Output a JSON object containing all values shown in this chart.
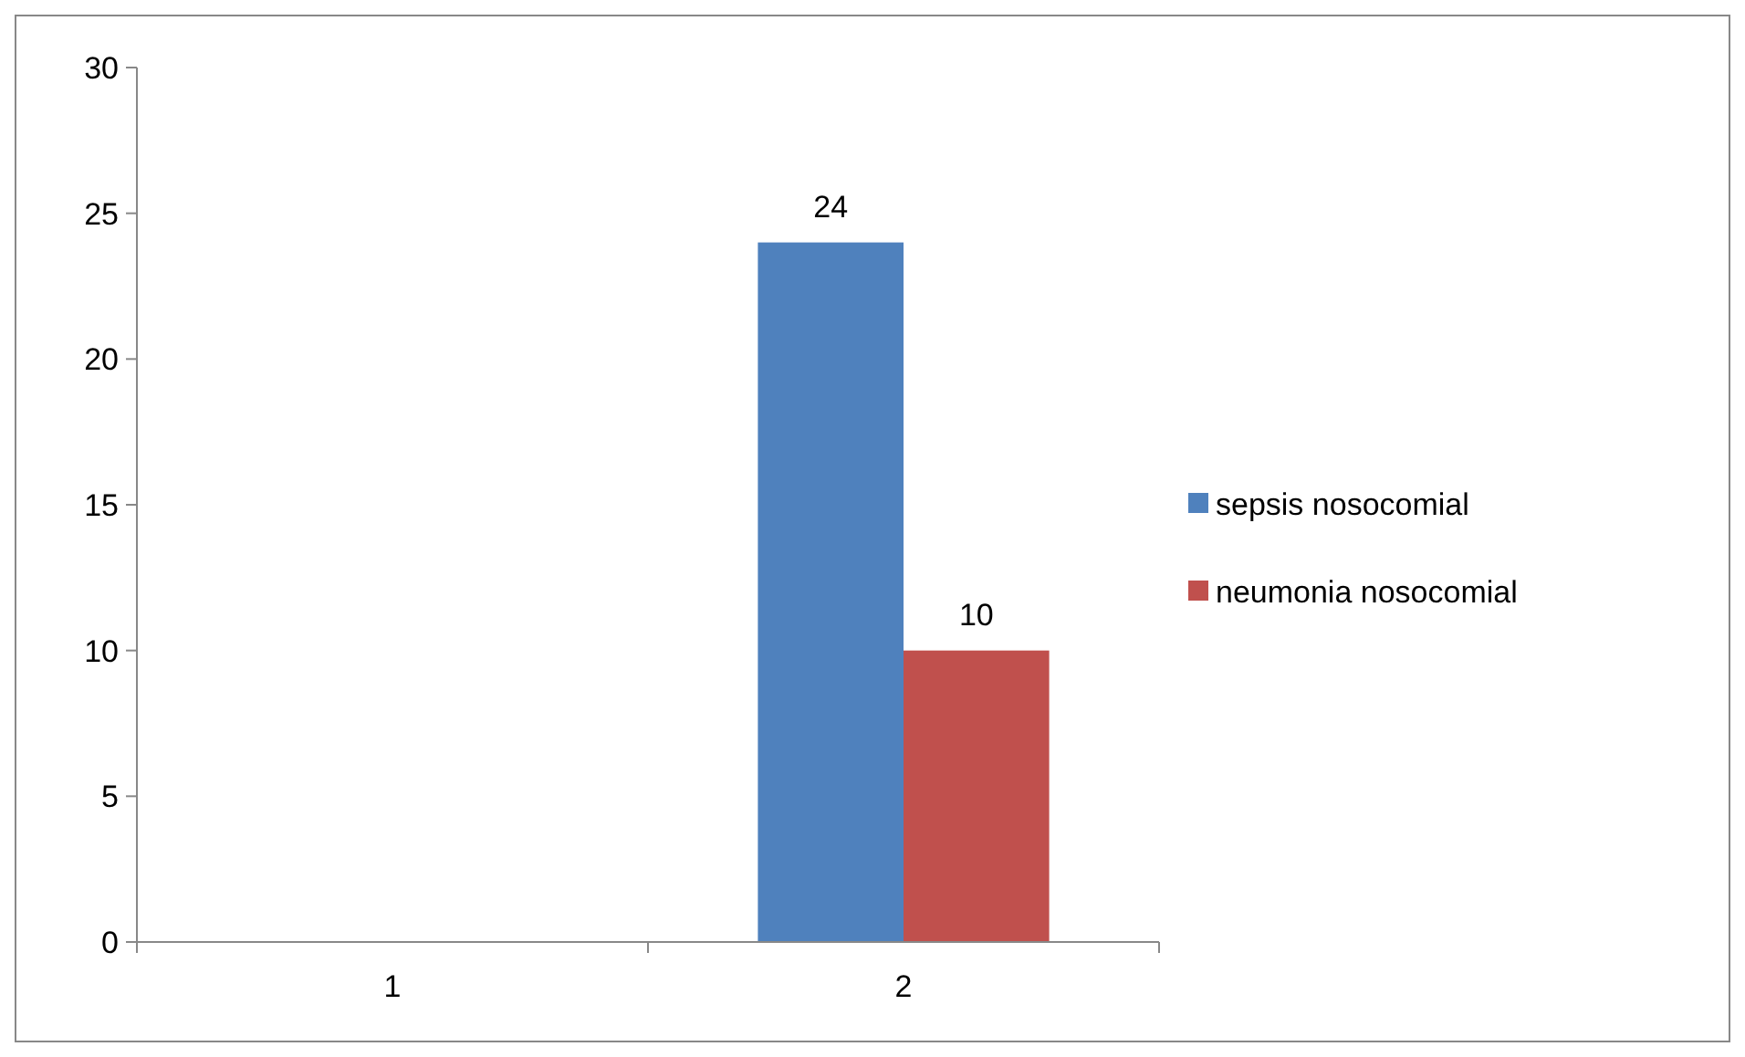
{
  "chart_data": {
    "type": "bar",
    "categories": [
      "1",
      "2"
    ],
    "series": [
      {
        "name": "sepsis nosocomial",
        "color": "#4f81bd",
        "values": [
          null,
          24
        ]
      },
      {
        "name": "neumonia nosocomial",
        "color": "#c0504d",
        "values": [
          null,
          10
        ]
      }
    ],
    "ylim": [
      0,
      30
    ],
    "yticks": [
      0,
      5,
      10,
      15,
      20,
      25,
      30
    ],
    "grid": false,
    "legend": "right",
    "data_labels": true
  }
}
